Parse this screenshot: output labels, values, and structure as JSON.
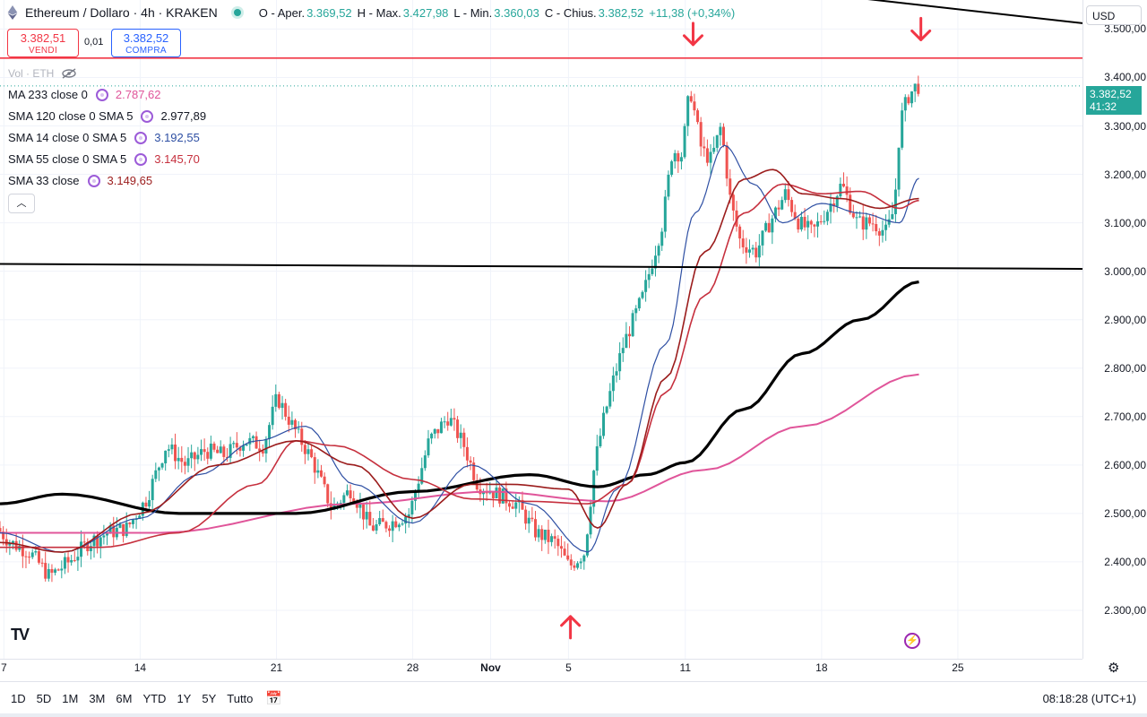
{
  "header": {
    "symbol": "Ethereum / Dollaro · 4h · KRAKEN",
    "open_label": "O - Aper.",
    "open_value": "3.369,52",
    "high_label": "H - Max.",
    "high_value": "3.427,98",
    "low_label": "L - Min.",
    "low_value": "3.360,03",
    "close_label": "C - Chius.",
    "close_value": "3.382,52",
    "change": "+11,38 (+0,34%)"
  },
  "trade": {
    "sell_price": "3.382,51",
    "sell_label": "VENDI",
    "spread": "0,01",
    "buy_price": "3.382,52",
    "buy_label": "COMPRA"
  },
  "volume_label": "Vol · ETH",
  "indicators": [
    {
      "name": "MA 233 close 0",
      "value": "2.787,62",
      "color": "#e0559a"
    },
    {
      "name": "SMA 120 close 0 SMA 5",
      "value": "2.977,89",
      "color": "#131722"
    },
    {
      "name": "SMA 14 close 0 SMA 5",
      "value": "3.192,55",
      "color": "#2e4fa3"
    },
    {
      "name": "SMA 55 close 0 SMA 5",
      "value": "3.145,70",
      "color": "#c6303e"
    },
    {
      "name": "SMA 33 close",
      "value": "3.149,65",
      "color": "#9b1c1c"
    }
  ],
  "currency": "USD",
  "price_tag": {
    "price": "3.382,52",
    "countdown": "41:32"
  },
  "bottom_bar": {
    "timeframes": [
      "1D",
      "5D",
      "1M",
      "3M",
      "6M",
      "YTD",
      "1Y",
      "5Y",
      "Tutto"
    ],
    "clock": "08:18:28 (UTC+1)"
  },
  "logo_text": "TV",
  "chart_data": {
    "type": "candlestick",
    "ylim": [
      2200,
      3560
    ],
    "yticks": [
      2300,
      2400,
      2500,
      2600,
      2700,
      2800,
      2900,
      3000,
      3100,
      3200,
      3300,
      3400,
      3500
    ],
    "ytick_labels": [
      "2.300,00",
      "2.400,00",
      "2.500,00",
      "2.600,00",
      "2.700,00",
      "2.800,00",
      "2.900,00",
      "3.000,00",
      "3.100,00",
      "3.200,00",
      "3.300,00",
      "3.400,00",
      "3.500,00"
    ],
    "x_dates_labels": [
      "7",
      "14",
      "21",
      "28",
      "Nov",
      "5",
      "11",
      "18",
      "25"
    ],
    "x_date_days": [
      7,
      14,
      21,
      28,
      32,
      36,
      42,
      49,
      56
    ],
    "date_range_days": [
      6.8,
      62.4
    ],
    "grid": true,
    "price_path_days": [
      [
        6.8,
        2470
      ],
      [
        7.5,
        2440
      ],
      [
        8.5,
        2420
      ],
      [
        9.5,
        2370
      ],
      [
        10.5,
        2400
      ],
      [
        11.5,
        2440
      ],
      [
        12.5,
        2460
      ],
      [
        13.5,
        2470
      ],
      [
        14.5,
        2530
      ],
      [
        15.5,
        2640
      ],
      [
        16.5,
        2600
      ],
      [
        17.5,
        2630
      ],
      [
        18.5,
        2620
      ],
      [
        19.5,
        2650
      ],
      [
        20.5,
        2640
      ],
      [
        21.2,
        2740
      ],
      [
        22.0,
        2680
      ],
      [
        23.0,
        2610
      ],
      [
        24.0,
        2510
      ],
      [
        25.0,
        2550
      ],
      [
        26.0,
        2470
      ],
      [
        27.0,
        2480
      ],
      [
        28.0,
        2500
      ],
      [
        29.0,
        2650
      ],
      [
        30.0,
        2700
      ],
      [
        30.8,
        2640
      ],
      [
        31.5,
        2560
      ],
      [
        32.5,
        2540
      ],
      [
        33.5,
        2520
      ],
      [
        34.5,
        2460
      ],
      [
        35.5,
        2440
      ],
      [
        36.2,
        2390
      ],
      [
        37.0,
        2420
      ],
      [
        37.5,
        2600
      ],
      [
        38.0,
        2700
      ],
      [
        38.5,
        2780
      ],
      [
        39.0,
        2850
      ],
      [
        40.0,
        2950
      ],
      [
        41.0,
        3100
      ],
      [
        41.5,
        3250
      ],
      [
        42.0,
        3240
      ],
      [
        42.4,
        3380
      ],
      [
        43.0,
        3250
      ],
      [
        43.5,
        3230
      ],
      [
        44.0,
        3300
      ],
      [
        44.5,
        3140
      ],
      [
        45.0,
        3060
      ],
      [
        45.8,
        3040
      ],
      [
        46.5,
        3100
      ],
      [
        47.3,
        3160
      ],
      [
        48.0,
        3100
      ],
      [
        48.7,
        3080
      ],
      [
        49.5,
        3130
      ],
      [
        50.2,
        3180
      ],
      [
        51.0,
        3100
      ],
      [
        51.8,
        3100
      ],
      [
        52.5,
        3080
      ],
      [
        52.9,
        3130
      ],
      [
        53.2,
        3310
      ],
      [
        53.6,
        3360
      ],
      [
        54.0,
        3382
      ]
    ],
    "series": [
      {
        "name": "MA 233 close 0",
        "color": "#e0559a",
        "width": 2,
        "points": [
          [
            6.8,
            2460
          ],
          [
            15,
            2460
          ],
          [
            25,
            2520
          ],
          [
            32,
            2545
          ],
          [
            38,
            2525
          ],
          [
            43,
            2590
          ],
          [
            48,
            2680
          ],
          [
            54,
            2787
          ]
        ]
      },
      {
        "name": "SMA 120 close 0 SMA 5",
        "color": "#000000",
        "width": 3.2,
        "points": [
          [
            6.8,
            2520
          ],
          [
            10,
            2540
          ],
          [
            16,
            2500
          ],
          [
            22,
            2500
          ],
          [
            28,
            2545
          ],
          [
            34,
            2580
          ],
          [
            37.5,
            2555
          ],
          [
            40,
            2580
          ],
          [
            42,
            2605
          ],
          [
            45,
            2715
          ],
          [
            48,
            2830
          ],
          [
            51,
            2900
          ],
          [
            54,
            2978
          ]
        ]
      },
      {
        "name": "SMA 14 close 0 SMA 5",
        "color": "#2e4fa3",
        "width": 1.2,
        "points": [
          [
            6.8,
            2460
          ],
          [
            10,
            2420
          ],
          [
            14,
            2490
          ],
          [
            17,
            2580
          ],
          [
            20,
            2650
          ],
          [
            22.5,
            2680
          ],
          [
            25,
            2560
          ],
          [
            28,
            2480
          ],
          [
            31,
            2600
          ],
          [
            34,
            2520
          ],
          [
            37,
            2420
          ],
          [
            38.5,
            2550
          ],
          [
            41,
            2850
          ],
          [
            42.5,
            3120
          ],
          [
            44,
            3260
          ],
          [
            45.5,
            3180
          ],
          [
            47,
            3100
          ],
          [
            49,
            3140
          ],
          [
            51,
            3120
          ],
          [
            53,
            3100
          ],
          [
            54,
            3192
          ]
        ]
      },
      {
        "name": "SMA 55 close 0 SMA 5",
        "color": "#c6303e",
        "width": 1.6,
        "points": [
          [
            6.8,
            2430
          ],
          [
            12,
            2430
          ],
          [
            16,
            2460
          ],
          [
            20,
            2560
          ],
          [
            22,
            2650
          ],
          [
            24,
            2640
          ],
          [
            28,
            2570
          ],
          [
            31,
            2530
          ],
          [
            34,
            2525
          ],
          [
            37,
            2520
          ],
          [
            39,
            2560
          ],
          [
            41,
            2750
          ],
          [
            43,
            2950
          ],
          [
            45,
            3120
          ],
          [
            47,
            3180
          ],
          [
            49,
            3160
          ],
          [
            51,
            3165
          ],
          [
            53,
            3130
          ],
          [
            54,
            3146
          ]
        ]
      },
      {
        "name": "SMA 33 close",
        "color": "#9b1c1c",
        "width": 1.6,
        "points": [
          [
            6.8,
            2440
          ],
          [
            10,
            2420
          ],
          [
            14,
            2500
          ],
          [
            18,
            2600
          ],
          [
            22,
            2650
          ],
          [
            25,
            2600
          ],
          [
            28,
            2490
          ],
          [
            31,
            2560
          ],
          [
            33,
            2560
          ],
          [
            36,
            2550
          ],
          [
            37.5,
            2470
          ],
          [
            39,
            2560
          ],
          [
            41,
            2780
          ],
          [
            43,
            3040
          ],
          [
            45,
            3190
          ],
          [
            46.5,
            3210
          ],
          [
            48,
            3160
          ],
          [
            50,
            3150
          ],
          [
            52,
            3130
          ],
          [
            54,
            3150
          ]
        ]
      }
    ],
    "horizontal_levels": [
      {
        "price": 3440,
        "color": "#f23645",
        "style": "solid",
        "label": ""
      },
      {
        "price": 3382.52,
        "color": "#26a69a",
        "style": "dotted",
        "label": ""
      }
    ],
    "trendlines": [
      {
        "color": "#000000",
        "from": [
          6.8,
          3015
        ],
        "to": [
          62.4,
          3005
        ]
      },
      {
        "color": "#000000",
        "from": [
          38.5,
          3620
        ],
        "to": [
          62.4,
          3512
        ]
      }
    ],
    "markers": [
      {
        "type": "down-arrow",
        "day": 42.4,
        "price": 3490,
        "color": "#f23645"
      },
      {
        "type": "down-arrow",
        "day": 54.1,
        "price": 3500,
        "color": "#f23645"
      },
      {
        "type": "up-arrow",
        "day": 36.1,
        "price": 2265,
        "color": "#f23645"
      }
    ]
  }
}
